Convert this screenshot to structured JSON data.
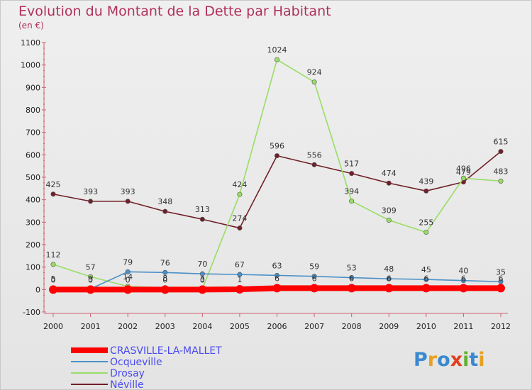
{
  "chart_data": {
    "type": "line",
    "title": "Evolution du Montant de la Dette par Habitant",
    "subtitle": "(en €)",
    "x": [
      "2000",
      "2001",
      "2002",
      "2003",
      "2004",
      "2005",
      "2006",
      "2007",
      "2008",
      "2009",
      "2010",
      "2011",
      "2012"
    ],
    "ylim": [
      -100,
      1100
    ],
    "yticks": [
      -100,
      0,
      100,
      200,
      300,
      400,
      500,
      600,
      700,
      800,
      900,
      1000,
      1100
    ],
    "grid": false,
    "legend_position": "bottom-left",
    "series": [
      {
        "name": "CRASVILLE-LA-MALLET",
        "color": "#ff0000",
        "values": [
          0,
          0,
          0,
          0,
          0,
          1,
          6,
          6,
          6,
          6,
          6,
          6,
          6
        ],
        "labels": [
          "0",
          "0",
          "0",
          "0",
          "0",
          "1",
          "6",
          "6",
          "6",
          "6",
          "6",
          "6",
          "6"
        ]
      },
      {
        "name": "Ocqueville",
        "color": "#4a90c8",
        "values": [
          5,
          3,
          79,
          76,
          70,
          67,
          63,
          59,
          53,
          48,
          45,
          40,
          35
        ],
        "labels": [
          "5",
          "3",
          "79",
          "76",
          "70",
          "67",
          "63",
          "59",
          "53",
          "48",
          "45",
          "40",
          "35"
        ]
      },
      {
        "name": "Drosay",
        "color": "#99dd66",
        "values": [
          112,
          57,
          14,
          8,
          3,
          424,
          1024,
          924,
          394,
          309,
          255,
          496,
          483
        ],
        "labels": [
          "112",
          "57",
          "14",
          "8",
          "3",
          "424",
          "1024",
          "924",
          "394",
          "309",
          "255",
          "496",
          "483"
        ]
      },
      {
        "name": "Néville",
        "color": "#702028",
        "values": [
          425,
          393,
          393,
          348,
          313,
          274,
          596,
          556,
          517,
          474,
          439,
          479,
          615
        ],
        "labels": [
          "425",
          "393",
          "393",
          "348",
          "313",
          "274",
          "596",
          "556",
          "517",
          "474",
          "439",
          "479",
          "615"
        ]
      }
    ]
  },
  "logo": {
    "text": "Proxiti"
  }
}
